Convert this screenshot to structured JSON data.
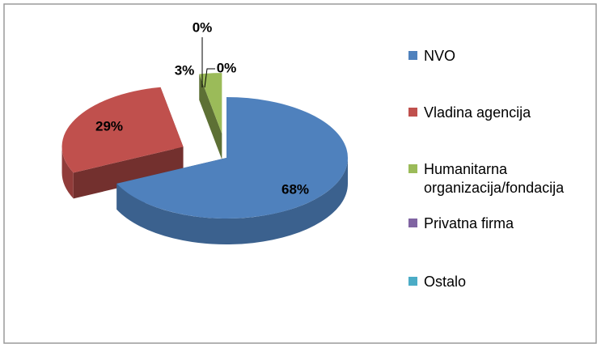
{
  "chart_data": {
    "type": "pie3d",
    "categories": [
      "NVO",
      "Vladina agencija",
      "Humanitarna organizacija/fondacija",
      "Privatna firma",
      "Ostalo"
    ],
    "values": [
      68,
      29,
      3,
      0,
      0
    ],
    "value_labels": [
      "68%",
      "29%",
      "3%",
      "0%",
      "0%"
    ],
    "colors": [
      "#4f81bd",
      "#c0504d",
      "#9bbb59",
      "#8064a2",
      "#4bacc6"
    ],
    "legend": "right"
  }
}
